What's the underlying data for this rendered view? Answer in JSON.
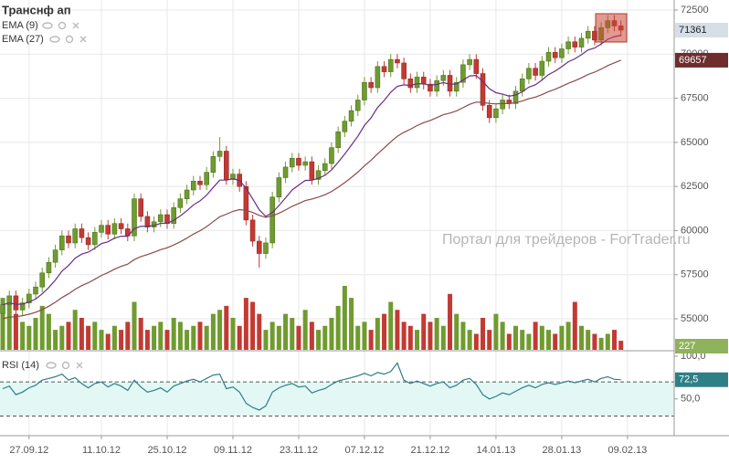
{
  "chart_data": {
    "type": "candlestick",
    "title": "Транснф ап",
    "watermark": "Портал для трейдеров - ForTrader.ru",
    "up_color": "#6f9b2f",
    "down_color": "#c23a33",
    "grid": true,
    "ylim": [
      53240,
      73070
    ],
    "yticks": [
      55000,
      57500,
      60000,
      62500,
      65000,
      67500,
      70000,
      72500
    ],
    "xlim": [
      -0.42,
      102.1
    ],
    "xticks": [
      {
        "value": 4,
        "label": "27.09.12"
      },
      {
        "value": 15,
        "label": "11.10.12"
      },
      {
        "value": 25,
        "label": "25.10.12"
      },
      {
        "value": 35,
        "label": "09.11.12"
      },
      {
        "value": 45,
        "label": "23.11.12"
      },
      {
        "value": 55,
        "label": "07.12.12"
      },
      {
        "value": 65,
        "label": "21.12.12"
      },
      {
        "value": 75,
        "label": "14.01.13"
      },
      {
        "value": 85,
        "label": "28.01.13"
      },
      {
        "value": 95,
        "label": "09.02.13"
      }
    ],
    "open": [
      55300,
      55800,
      56300,
      55500,
      55900,
      56400,
      56800,
      57600,
      58200,
      58900,
      59700,
      59300,
      60100,
      59600,
      59200,
      59900,
      60300,
      59800,
      60400,
      60100,
      59700,
      61800,
      60800,
      60200,
      60500,
      60900,
      60400,
      61300,
      61800,
      62300,
      62800,
      62600,
      63300,
      64200,
      64500,
      62900,
      63200,
      62500,
      60600,
      59400,
      58700,
      59300,
      61900,
      63000,
      63600,
      64100,
      63700,
      63900,
      62900,
      63400,
      63800,
      64700,
      65600,
      66200,
      66800,
      67400,
      68400,
      68100,
      69300,
      69000,
      69700,
      69500,
      68600,
      68100,
      68700,
      68300,
      67900,
      68500,
      68800,
      67900,
      68400,
      69400,
      69700,
      68900,
      67100,
      66400,
      66900,
      67400,
      67200,
      67900,
      68600,
      69200,
      68800,
      69600,
      70100,
      69800,
      70300,
      70700,
      70400,
      70900,
      71300,
      70800,
      71500,
      71900,
      71600
    ],
    "high": [
      56100,
      56600,
      56600,
      56200,
      56700,
      57100,
      57900,
      58500,
      59200,
      60000,
      60000,
      60400,
      60400,
      59900,
      60200,
      60600,
      60600,
      60700,
      60700,
      60400,
      62100,
      62100,
      61100,
      60800,
      61200,
      61200,
      61600,
      62100,
      62600,
      63100,
      63100,
      63600,
      64500,
      65300,
      64800,
      63500,
      63500,
      62800,
      60900,
      59700,
      59600,
      62200,
      63300,
      63900,
      64400,
      64400,
      64200,
      64200,
      63700,
      64100,
      65000,
      65900,
      66500,
      67100,
      67700,
      68700,
      68700,
      69600,
      69600,
      70000,
      70000,
      69800,
      68900,
      69000,
      69000,
      68600,
      68800,
      69100,
      69100,
      68700,
      69700,
      70000,
      70000,
      69200,
      67400,
      67200,
      67700,
      67700,
      68200,
      68900,
      69500,
      69500,
      69900,
      70400,
      70400,
      70600,
      71000,
      71000,
      71200,
      71600,
      71600,
      71800,
      72200,
      72200,
      71900
    ],
    "low": [
      55000,
      55500,
      55200,
      55200,
      55600,
      56100,
      56500,
      57300,
      57900,
      58600,
      59000,
      59000,
      59300,
      58900,
      58900,
      59600,
      59500,
      59500,
      59800,
      59400,
      59400,
      60500,
      59900,
      59900,
      60200,
      60100,
      60100,
      61000,
      61500,
      62000,
      62300,
      62300,
      63000,
      63900,
      62600,
      62600,
      62200,
      60300,
      59100,
      57900,
      58400,
      59000,
      61600,
      62700,
      63300,
      63400,
      63400,
      62600,
      62600,
      63100,
      63500,
      64400,
      65300,
      65900,
      66500,
      67100,
      67800,
      67800,
      68700,
      68700,
      69200,
      68300,
      67800,
      67800,
      68000,
      67600,
      67600,
      68200,
      67600,
      67600,
      68100,
      69100,
      68600,
      66800,
      66100,
      66100,
      66600,
      66900,
      66900,
      67600,
      68300,
      68500,
      68500,
      69300,
      69500,
      69500,
      70000,
      70100,
      70100,
      70600,
      70500,
      70500,
      71200,
      71300,
      71000
    ],
    "close": [
      55800,
      56300,
      55500,
      55900,
      56400,
      56800,
      57600,
      58200,
      58900,
      59700,
      59300,
      60100,
      59600,
      59200,
      59900,
      60300,
      59800,
      60400,
      60100,
      59700,
      61800,
      60800,
      60200,
      60500,
      60900,
      60400,
      61300,
      61800,
      62300,
      62800,
      62600,
      63300,
      64200,
      64500,
      62900,
      63200,
      62500,
      60600,
      59400,
      58700,
      59300,
      61900,
      63000,
      63600,
      64100,
      63700,
      63900,
      62900,
      63400,
      63800,
      64700,
      65600,
      66200,
      66800,
      67400,
      68400,
      68100,
      69300,
      69000,
      69700,
      69500,
      68600,
      68100,
      68700,
      68300,
      67900,
      68500,
      68800,
      67900,
      68400,
      69400,
      69700,
      68900,
      67100,
      66400,
      66900,
      67400,
      67200,
      67900,
      68600,
      69200,
      68800,
      69600,
      70100,
      69800,
      70300,
      70700,
      70400,
      70900,
      71300,
      70800,
      71500,
      71900,
      71600,
      71361
    ],
    "series": [
      {
        "name": "EMA (9)",
        "color": "#6b2c86",
        "values": [
          55800,
          55900,
          55820,
          55836,
          55949,
          56119,
          56415,
          56772,
          57198,
          57698,
          58018,
          58434,
          58667,
          58774,
          58999,
          59259,
          59367,
          59574,
          59679,
          59683,
          60106,
          60245,
          60236,
          60289,
          60411,
          60409,
          60587,
          60830,
          61124,
          61459,
          61687,
          62010,
          62448,
          62858,
          62866,
          62933,
          62846,
          62397,
          61798,
          61178,
          60802,
          61022,
          61418,
          61854,
          62303,
          62582,
          62846,
          62857,
          62966,
          63133,
          63446,
          63877,
          64342,
          64834,
          65347,
          65958,
          66386,
          66969,
          67375,
          67840,
          68172,
          68258,
          68226,
          68321,
          68317,
          68234,
          68287,
          68390,
          68292,
          68314,
          68531,
          68765,
          68792,
          68454,
          68043,
          67814,
          67731,
          67625,
          67680,
          67864,
          68131,
          68265,
          68532,
          68846,
          69037,
          69290,
          69572,
          69738,
          69970,
          70236,
          70349,
          70579,
          70843,
          70994,
          71067
        ]
      },
      {
        "name": "EMA (27)",
        "color": "#8c4a4a",
        "values": [
          55000,
          55091,
          55120,
          55175,
          55261,
          55369,
          55525,
          55712,
          55935,
          56199,
          56416,
          56674,
          56879,
          57041,
          57241,
          57455,
          57619,
          57814,
          57974,
          58095,
          58354,
          58525,
          58642,
          58772,
          58921,
          59025,
          59184,
          59367,
          59572,
          59798,
          59994,
          60225,
          60503,
          60783,
          60931,
          61090,
          61189,
          61148,
          61026,
          60863,
          60754,
          60834,
          60986,
          61169,
          61374,
          61537,
          61702,
          61786,
          61899,
          62032,
          62219,
          62456,
          62718,
          63004,
          63312,
          63668,
          63978,
          64351,
          64676,
          65028,
          65341,
          65569,
          65746,
          65953,
          66117,
          66242,
          66400,
          66568,
          66661,
          66783,
          66966,
          67157,
          67279,
          67266,
          67205,
          67184,
          67199,
          67199,
          67248,
          67343,
          67473,
          67566,
          67708,
          67875,
          68010,
          68170,
          68347,
          68491,
          68660,
          68845,
          68982,
          69158,
          69350,
          69508,
          69657
        ]
      }
    ],
    "volume": {
      "ylim": [
        0,
        1600
      ],
      "values": [
        1300,
        1200,
        900,
        700,
        600,
        800,
        1100,
        900,
        500,
        600,
        700,
        1000,
        800,
        600,
        700,
        500,
        400,
        600,
        500,
        700,
        1200,
        800,
        500,
        600,
        700,
        500,
        800,
        700,
        500,
        600,
        700,
        600,
        900,
        1000,
        1100,
        800,
        600,
        1300,
        1200,
        900,
        500,
        700,
        600,
        900,
        800,
        600,
        1000,
        700,
        500,
        600,
        800,
        1100,
        1600,
        1300,
        600,
        700,
        500,
        800,
        900,
        1200,
        1000,
        700,
        600,
        500,
        900,
        700,
        800,
        600,
        1400,
        900,
        700,
        500,
        400,
        800,
        500,
        900,
        700,
        400,
        600,
        500,
        400,
        700,
        600,
        500,
        400,
        600,
        700,
        1200,
        600,
        500,
        400,
        300,
        400,
        500,
        227
      ]
    },
    "rsi": {
      "name": "RSI (14)",
      "color": "#2e7f86",
      "ylim": [
        7,
        100
      ],
      "yticks": [
        {
          "value": 100,
          "label": "100,0"
        },
        {
          "value": 50,
          "label": "50,0"
        }
      ],
      "levels": [
        30,
        70
      ],
      "last_value_label": "72,5",
      "values": [
        62,
        65,
        55,
        58,
        63,
        66,
        72,
        74,
        76,
        79,
        72,
        75,
        68,
        63,
        68,
        70,
        64,
        68,
        65,
        60,
        72,
        64,
        58,
        60,
        63,
        58,
        65,
        68,
        71,
        73,
        70,
        74,
        78,
        79,
        62,
        64,
        58,
        45,
        40,
        37,
        42,
        58,
        63,
        66,
        68,
        64,
        65,
        57,
        60,
        62,
        67,
        71,
        73,
        75,
        77,
        80,
        77,
        81,
        79,
        82,
        92,
        72,
        68,
        71,
        68,
        65,
        68,
        70,
        63,
        66,
        72,
        74,
        67,
        55,
        50,
        53,
        57,
        55,
        59,
        63,
        66,
        63,
        67,
        69,
        67,
        69,
        71,
        69,
        71,
        73,
        70,
        74,
        76,
        73,
        72.5
      ]
    }
  }
}
